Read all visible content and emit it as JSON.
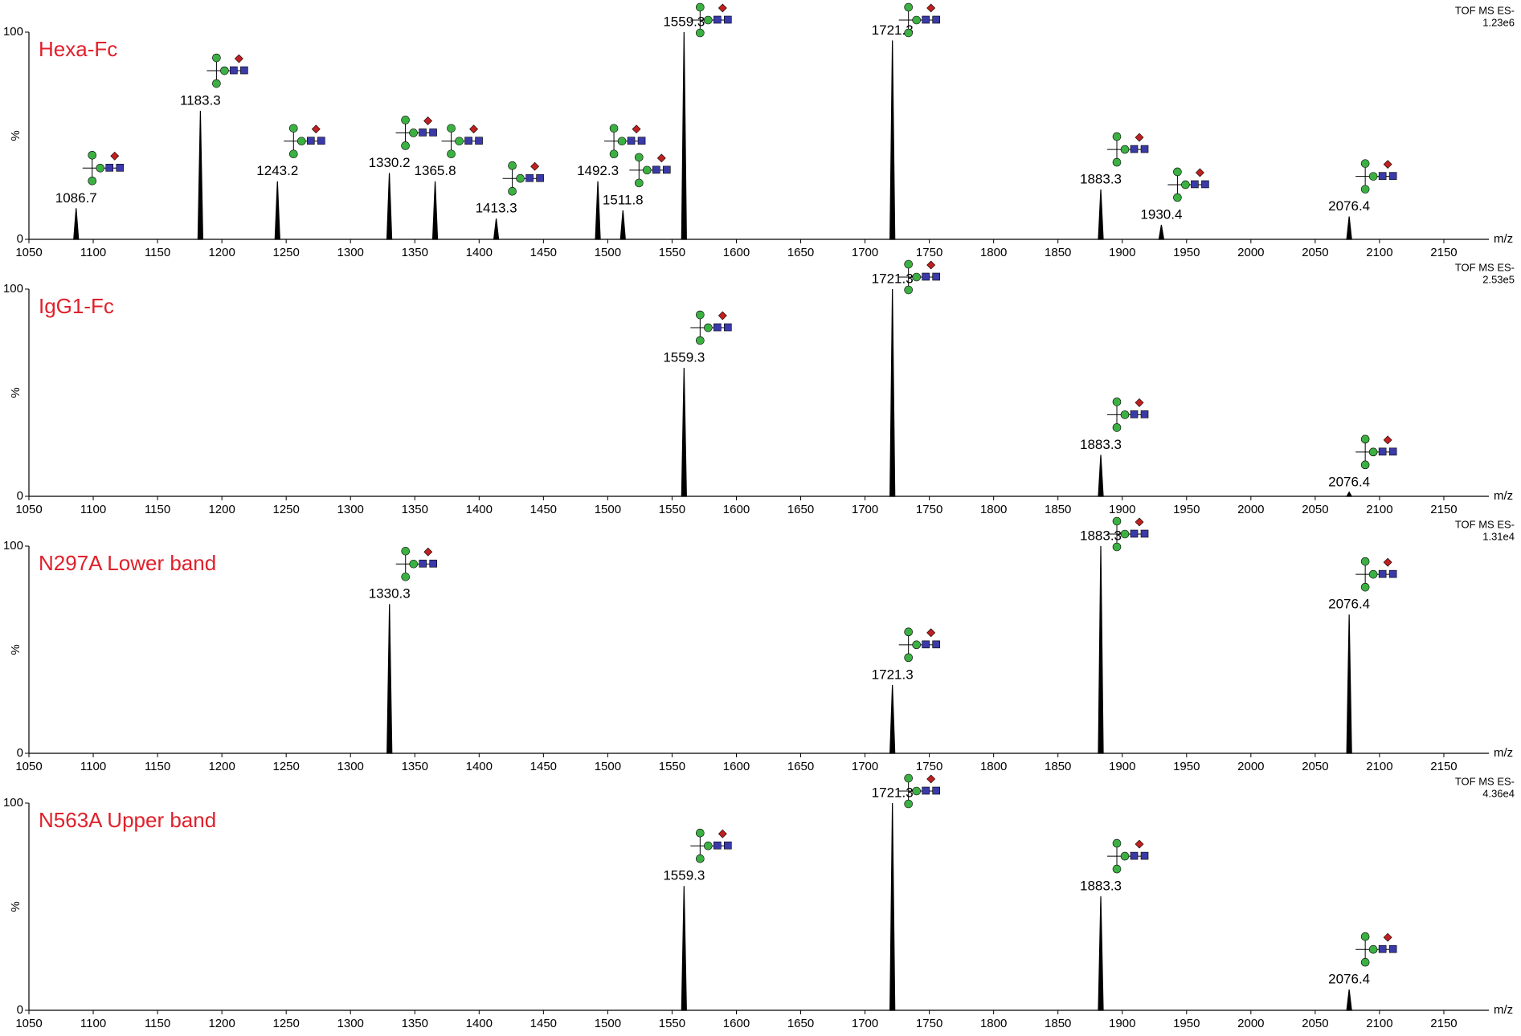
{
  "chart_data": [
    {
      "type": "stem",
      "title": "Hexa-Fc",
      "instrument": "TOF MS ES-",
      "intensity": "1.23e6",
      "header_color": "#000000",
      "x_label": "m/z",
      "y_label": "%",
      "color": "#000000",
      "x": [
        1086.7,
        1183.3,
        1243.2,
        1330.2,
        1365.8,
        1413.3,
        1492.3,
        1511.8,
        1559.3,
        1721.3,
        1883.3,
        1930.4,
        2076.4
      ],
      "values": [
        15,
        62,
        28,
        32,
        28,
        10,
        28,
        14,
        100,
        96,
        24,
        7,
        11
      ],
      "xlim": [
        1050,
        2185
      ],
      "ylim": [
        0,
        100
      ],
      "xticks": [
        1050,
        1100,
        1150,
        1200,
        1250,
        1300,
        1350,
        1400,
        1450,
        1500,
        1550,
        1600,
        1650,
        1700,
        1750,
        1800,
        1850,
        1900,
        1950,
        2000,
        2050,
        2100,
        2150
      ],
      "yticks": [
        0,
        100
      ]
    },
    {
      "type": "stem",
      "title": "IgG1-Fc",
      "instrument": "TOF MS ES-",
      "intensity": "2.53e5",
      "header_color": "#8b1a8b",
      "x_label": "m/z",
      "y_label": "%",
      "color": "#000000",
      "x": [
        1559.3,
        1721.3,
        1883.3,
        2076.4
      ],
      "values": [
        62,
        100,
        20,
        2
      ],
      "xlim": [
        1050,
        2185
      ],
      "ylim": [
        0,
        100
      ],
      "xticks": [
        1050,
        1100,
        1150,
        1200,
        1250,
        1300,
        1350,
        1400,
        1450,
        1500,
        1550,
        1600,
        1650,
        1700,
        1750,
        1800,
        1850,
        1900,
        1950,
        2000,
        2050,
        2100,
        2150
      ],
      "yticks": [
        0,
        100
      ]
    },
    {
      "type": "stem",
      "title": "N297A Lower band",
      "instrument": "TOF MS ES-",
      "intensity": "1.31e4",
      "header_color": "#2e8b2e",
      "x_label": "m/z",
      "y_label": "%",
      "color": "#000000",
      "x": [
        1330.3,
        1721.3,
        1883.3,
        2076.4
      ],
      "values": [
        72,
        33,
        100,
        67
      ],
      "xlim": [
        1050,
        2185
      ],
      "ylim": [
        0,
        100
      ],
      "xticks": [
        1050,
        1100,
        1150,
        1200,
        1250,
        1300,
        1350,
        1400,
        1450,
        1500,
        1550,
        1600,
        1650,
        1700,
        1750,
        1800,
        1850,
        1900,
        1950,
        2000,
        2050,
        2100,
        2150
      ],
      "yticks": [
        0,
        100
      ]
    },
    {
      "type": "stem",
      "title": "N563A Upper band",
      "instrument": "TOF MS ES-",
      "intensity": "4.36e4",
      "header_color": "#e02020",
      "x_label": "m/z",
      "y_label": "%",
      "color": "#000000",
      "x": [
        1559.3,
        1721.3,
        1883.3,
        2076.4
      ],
      "values": [
        60,
        100,
        55,
        10
      ],
      "xlim": [
        1050,
        2185
      ],
      "ylim": [
        0,
        100
      ],
      "xticks": [
        1050,
        1100,
        1150,
        1200,
        1250,
        1300,
        1350,
        1400,
        1450,
        1500,
        1550,
        1600,
        1650,
        1700,
        1750,
        1800,
        1850,
        1900,
        1950,
        2000,
        2050,
        2100,
        2150
      ],
      "yticks": [
        0,
        100
      ]
    }
  ]
}
